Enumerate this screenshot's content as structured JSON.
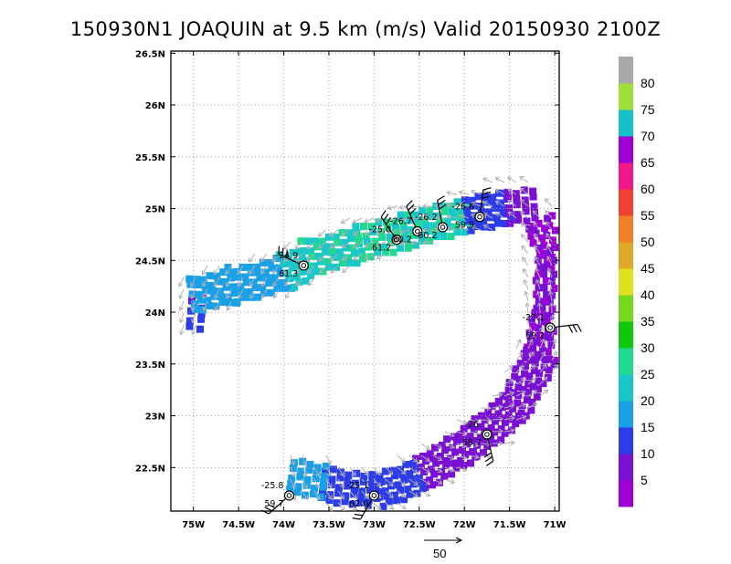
{
  "title": "150930N1 JOAQUIN at 9.5 km (m/s) Valid 20150930 2100Z",
  "chart_data": {
    "type": "heatmap",
    "title": "150930N1 JOAQUIN at 9.5 km (m/s) Valid 20150930 2100Z",
    "xlim": [
      -75.25,
      -70.95
    ],
    "ylim": [
      22.08,
      26.52
    ],
    "x_ticks": [
      {
        "value": -75.0,
        "label": "75W"
      },
      {
        "value": -74.5,
        "label": "74.5W"
      },
      {
        "value": -74.0,
        "label": "74W"
      },
      {
        "value": -73.5,
        "label": "73.5W"
      },
      {
        "value": -73.0,
        "label": "73W"
      },
      {
        "value": -72.5,
        "label": "72.5W"
      },
      {
        "value": -72.0,
        "label": "72W"
      },
      {
        "value": -71.5,
        "label": "71.5W"
      },
      {
        "value": -71.0,
        "label": "71W"
      }
    ],
    "y_ticks": [
      {
        "value": 22.5,
        "label": "22.5N"
      },
      {
        "value": 23.0,
        "label": "23N"
      },
      {
        "value": 23.5,
        "label": "23.5N"
      },
      {
        "value": 24.0,
        "label": "24N"
      },
      {
        "value": 24.5,
        "label": "24.5N"
      },
      {
        "value": 25.0,
        "label": "25N"
      },
      {
        "value": 25.5,
        "label": "25.5N"
      },
      {
        "value": 26.0,
        "label": "26N"
      },
      {
        "value": 26.5,
        "label": "26.5N"
      }
    ],
    "grid": true,
    "colorbar": {
      "levels": [
        {
          "upper": "5",
          "color": "#9c00d6"
        },
        {
          "upper": "10",
          "color": "#7a10d4"
        },
        {
          "upper": "15",
          "color": "#2c3ce8"
        },
        {
          "upper": "20",
          "color": "#18a0e8"
        },
        {
          "upper": "25",
          "color": "#18c8c8"
        },
        {
          "upper": "30",
          "color": "#20d890"
        },
        {
          "upper": "35",
          "color": "#10c810"
        },
        {
          "upper": "40",
          "color": "#78d820"
        },
        {
          "upper": "45",
          "color": "#e0e020"
        },
        {
          "upper": "50",
          "color": "#e0a828"
        },
        {
          "upper": "55",
          "color": "#f08028"
        },
        {
          "upper": "60",
          "color": "#f04030"
        },
        {
          "upper": "65",
          "color": "#f01888"
        },
        {
          "upper": "70",
          "color": "#9c00d6"
        },
        {
          "upper": "75",
          "color": "#18c0c8"
        },
        {
          "upper": "80",
          "color": "#a0e038"
        },
        {
          "upper": "",
          "color": "#a8a8a8"
        }
      ],
      "labels": [
        "5",
        "10",
        "15",
        "20",
        "25",
        "30",
        "35",
        "40",
        "45",
        "50",
        "55",
        "60",
        "65",
        "70",
        "75",
        "80"
      ]
    },
    "wind_segments": [
      {
        "from": [
          -75.07,
          24.03
        ],
        "to": [
          -74.95,
          24.02
        ],
        "wind": 11
      },
      {
        "from": [
          -75.05,
          24.2
        ],
        "to": [
          -74.6,
          24.28
        ],
        "wind": 17
      },
      {
        "from": [
          -74.6,
          24.28
        ],
        "to": [
          -74.0,
          24.42
        ],
        "wind": 17
      },
      {
        "from": [
          -74.0,
          24.42
        ],
        "to": [
          -73.8,
          24.5
        ],
        "wind": 22
      },
      {
        "from": [
          -73.8,
          24.55
        ],
        "to": [
          -73.2,
          24.68
        ],
        "wind": 24
      },
      {
        "from": [
          -73.2,
          24.7
        ],
        "to": [
          -72.7,
          24.8
        ],
        "wind": 25
      },
      {
        "from": [
          -72.7,
          24.82
        ],
        "to": [
          -72.0,
          24.97
        ],
        "wind": 24
      },
      {
        "from": [
          -72.0,
          24.97
        ],
        "to": [
          -71.55,
          25.05
        ],
        "wind": 12
      },
      {
        "from": [
          -71.55,
          25.05
        ],
        "to": [
          -71.27,
          25.07
        ],
        "wind": 8
      },
      {
        "from": [
          -71.2,
          24.9
        ],
        "to": [
          -71.0,
          24.6
        ],
        "wind": 4
      },
      {
        "from": [
          -71.05,
          24.6
        ],
        "to": [
          -71.08,
          24.0
        ],
        "wind": 5
      },
      {
        "from": [
          -71.1,
          24.0
        ],
        "to": [
          -71.2,
          23.6
        ],
        "wind": 5
      },
      {
        "from": [
          -71.2,
          23.6
        ],
        "to": [
          -71.5,
          23.1
        ],
        "wind": 6
      },
      {
        "from": [
          -71.5,
          23.1
        ],
        "to": [
          -72.0,
          22.75
        ],
        "wind": 6
      },
      {
        "from": [
          -72.0,
          22.75
        ],
        "to": [
          -72.55,
          22.45
        ],
        "wind": 6
      },
      {
        "from": [
          -72.55,
          22.45
        ],
        "to": [
          -73.0,
          22.3
        ],
        "wind": 13
      },
      {
        "from": [
          -73.0,
          22.3
        ],
        "to": [
          -73.6,
          22.37
        ],
        "wind": 12
      },
      {
        "from": [
          -73.6,
          22.4
        ],
        "to": [
          -73.95,
          22.45
        ],
        "wind": 16
      }
    ],
    "stations": [
      {
        "lon": -73.78,
        "lat": 24.45,
        "label1": "-24.9",
        "label2": "61.3"
      },
      {
        "lon": -72.75,
        "lat": 24.7,
        "label1": "-25.0",
        "label2": "61.2"
      },
      {
        "lon": -72.52,
        "lat": 24.78,
        "label1": "-26.7",
        "label2": "60.2"
      },
      {
        "lon": -72.24,
        "lat": 24.82,
        "label1": "-26.2",
        "label2": "60.2"
      },
      {
        "lon": -71.83,
        "lat": 24.92,
        "label1": "-26.6",
        "label2": "59.9"
      },
      {
        "lon": -71.05,
        "lat": 23.85,
        "label1": "-27.1",
        "label2": "59.2"
      },
      {
        "lon": -71.75,
        "lat": 22.82,
        "label1": "-26.",
        "label2": "58.7"
      },
      {
        "lon": -73.0,
        "lat": 22.23,
        "label1": "-25.1",
        "label2": "62.0"
      },
      {
        "lon": -73.94,
        "lat": 22.23,
        "label1": "-25.8",
        "label2": "59.7"
      }
    ],
    "reference_arrow_label": "50"
  }
}
